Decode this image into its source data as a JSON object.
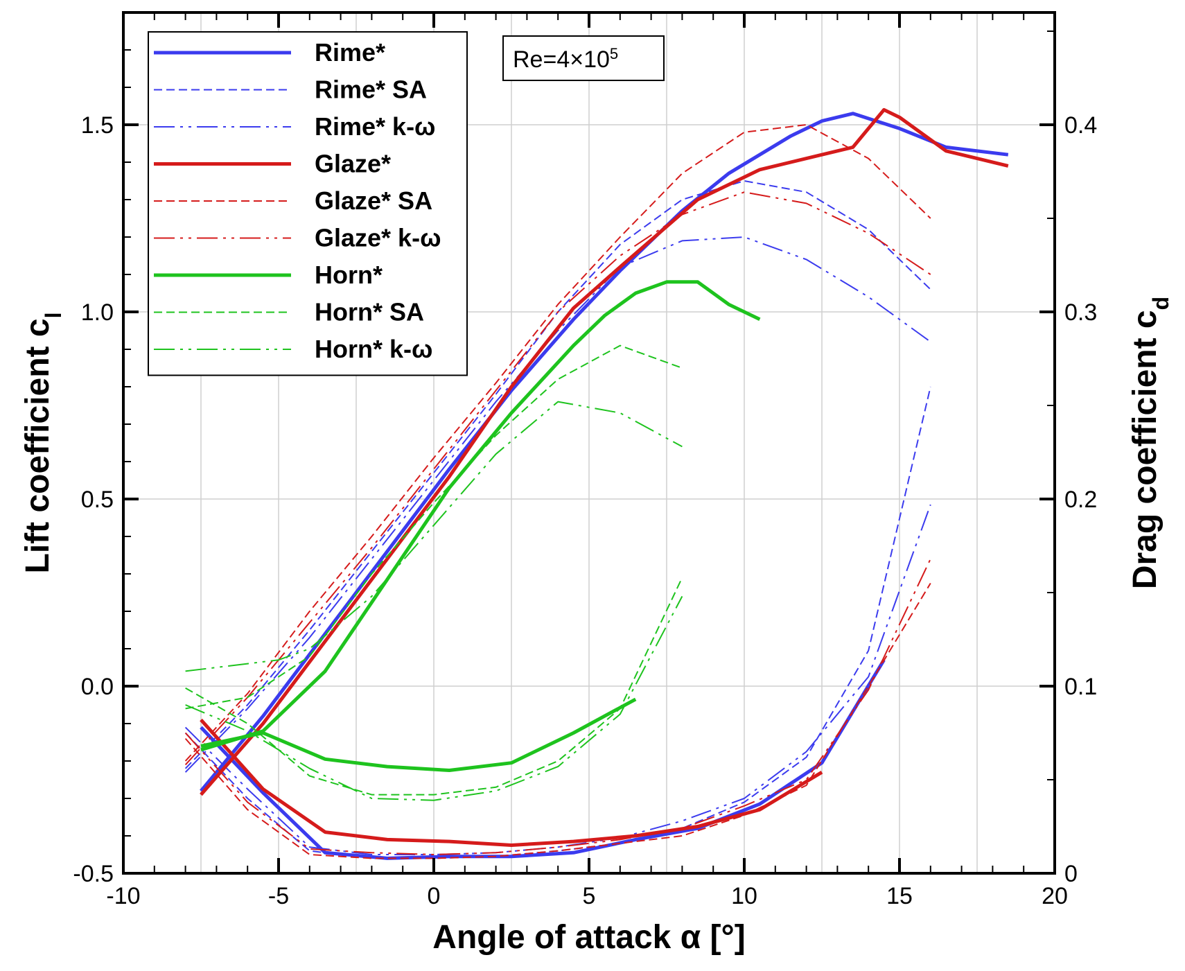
{
  "chart_data": {
    "type": "line",
    "annotation": "Re=4×10",
    "annotation_sup": "5",
    "xaxis": {
      "label": "Angle of attack α [°]",
      "range": [
        -10,
        20
      ],
      "ticks": [
        -10,
        -5,
        0,
        5,
        10,
        15,
        20
      ],
      "tick_labels": [
        "-10",
        "-5",
        "0",
        "5",
        "10",
        "15",
        "20"
      ]
    },
    "yaxis_left": {
      "label": "Lift coefficient c",
      "label_sub": "l",
      "range": [
        -0.5,
        1.8
      ],
      "ticks": [
        -0.5,
        0.0,
        0.5,
        1.0,
        1.5
      ],
      "tick_labels": [
        "-0.5",
        "0.0",
        "0.5",
        "1.0",
        "1.5"
      ]
    },
    "yaxis_right": {
      "label": "Drag coefficient c",
      "label_sub": "d",
      "range": [
        0,
        0.46
      ],
      "ticks": [
        0,
        0.1,
        0.2,
        0.3,
        0.4
      ],
      "tick_labels": [
        "0",
        "0.1",
        "0.2",
        "0.3",
        "0.4"
      ]
    },
    "grid": true,
    "legend_position": "top-left",
    "series": [
      {
        "name": "Rime*",
        "color": "#3b3bee",
        "dash": "solid",
        "thick": true,
        "cl": [
          [
            -7.5,
            -0.28
          ],
          [
            -5.5,
            -0.08
          ],
          [
            -3.5,
            0.14
          ],
          [
            0.5,
            0.58
          ],
          [
            2.5,
            0.79
          ],
          [
            4.5,
            0.98
          ],
          [
            6,
            1.11
          ],
          [
            8,
            1.27
          ],
          [
            9.5,
            1.37
          ],
          [
            10.5,
            1.42
          ],
          [
            11.5,
            1.47
          ],
          [
            12.5,
            1.51
          ],
          [
            13.5,
            1.53
          ],
          [
            15,
            1.49
          ],
          [
            16.5,
            1.44
          ],
          [
            18.5,
            1.42
          ]
        ],
        "cd": [
          [
            -7.5,
            0.078
          ],
          [
            -5.5,
            0.043
          ],
          [
            -3.5,
            0.011
          ],
          [
            -1.5,
            0.008
          ],
          [
            0.5,
            0.009
          ],
          [
            2.5,
            0.009
          ],
          [
            4.5,
            0.011
          ],
          [
            6.5,
            0.018
          ],
          [
            8.5,
            0.024
          ],
          [
            10.5,
            0.037
          ],
          [
            12.5,
            0.059
          ],
          [
            14.5,
            0.114
          ]
        ]
      },
      {
        "name": "Rime* SA",
        "color": "#3b3bee",
        "dash": "dashed",
        "thick": false,
        "cl": [
          [
            -8,
            -0.22
          ],
          [
            -6,
            -0.05
          ],
          [
            -4,
            0.15
          ],
          [
            -2,
            0.36
          ],
          [
            0,
            0.57
          ],
          [
            2,
            0.78
          ],
          [
            4,
            1.0
          ],
          [
            6,
            1.18
          ],
          [
            8,
            1.3
          ],
          [
            10,
            1.35
          ],
          [
            12,
            1.32
          ],
          [
            14,
            1.22
          ],
          [
            16,
            1.06
          ]
        ],
        "cd": [
          [
            -8,
            0.075
          ],
          [
            -6,
            0.04
          ],
          [
            -4,
            0.012
          ],
          [
            -2,
            0.008
          ],
          [
            0,
            0.008
          ],
          [
            2,
            0.009
          ],
          [
            4,
            0.012
          ],
          [
            6,
            0.016
          ],
          [
            8,
            0.024
          ],
          [
            10,
            0.038
          ],
          [
            12,
            0.062
          ],
          [
            14,
            0.119
          ],
          [
            16,
            0.26
          ]
        ]
      },
      {
        "name": "Rime* k-ω",
        "color": "#3b3bee",
        "dash": "dashdotdot",
        "thick": false,
        "cl": [
          [
            -8,
            -0.23
          ],
          [
            -6,
            -0.06
          ],
          [
            -4,
            0.13
          ],
          [
            -2,
            0.34
          ],
          [
            0,
            0.55
          ],
          [
            2,
            0.76
          ],
          [
            4,
            0.95
          ],
          [
            6,
            1.12
          ],
          [
            8,
            1.19
          ],
          [
            10,
            1.2
          ],
          [
            12,
            1.14
          ],
          [
            14,
            1.04
          ],
          [
            16,
            0.92
          ]
        ],
        "cd": [
          [
            -8,
            0.078
          ],
          [
            -6,
            0.045
          ],
          [
            -4,
            0.014
          ],
          [
            -2,
            0.01
          ],
          [
            0,
            0.01
          ],
          [
            2,
            0.011
          ],
          [
            4,
            0.014
          ],
          [
            6,
            0.019
          ],
          [
            8,
            0.028
          ],
          [
            10,
            0.04
          ],
          [
            12,
            0.065
          ],
          [
            14,
            0.105
          ],
          [
            16,
            0.197
          ]
        ]
      },
      {
        "name": "Glaze*",
        "color": "#d51b1b",
        "dash": "solid",
        "thick": true,
        "cl": [
          [
            -7.5,
            -0.29
          ],
          [
            -5.5,
            -0.1
          ],
          [
            -3.5,
            0.12
          ],
          [
            0.5,
            0.56
          ],
          [
            2.5,
            0.8
          ],
          [
            4.5,
            1.01
          ],
          [
            6,
            1.12
          ],
          [
            8.5,
            1.3
          ],
          [
            10.5,
            1.38
          ],
          [
            12.5,
            1.42
          ],
          [
            13.5,
            1.44
          ],
          [
            14,
            1.49
          ],
          [
            14.5,
            1.54
          ],
          [
            15,
            1.52
          ],
          [
            16.5,
            1.43
          ],
          [
            18.5,
            1.39
          ]
        ],
        "cd": [
          [
            -7.5,
            0.082
          ],
          [
            -5.5,
            0.045
          ],
          [
            -3.5,
            0.022
          ],
          [
            -1.5,
            0.018
          ],
          [
            0.5,
            0.017
          ],
          [
            2.5,
            0.015
          ],
          [
            4.5,
            0.017
          ],
          [
            6.5,
            0.02
          ],
          [
            8.5,
            0.025
          ],
          [
            10.5,
            0.034
          ],
          [
            12.5,
            0.054
          ]
        ]
      },
      {
        "name": "Glaze* SA",
        "color": "#d51b1b",
        "dash": "dashed",
        "thick": false,
        "cl": [
          [
            -8,
            -0.2
          ],
          [
            -6,
            -0.02
          ],
          [
            -4,
            0.2
          ],
          [
            -2,
            0.4
          ],
          [
            0,
            0.61
          ],
          [
            2,
            0.81
          ],
          [
            4,
            1.02
          ],
          [
            6,
            1.2
          ],
          [
            8,
            1.37
          ],
          [
            10,
            1.48
          ],
          [
            12,
            1.5
          ],
          [
            14,
            1.41
          ],
          [
            16,
            1.25
          ]
        ],
        "cd": [
          [
            -8,
            0.072
          ],
          [
            -6,
            0.034
          ],
          [
            -4,
            0.01
          ],
          [
            -2,
            0.008
          ],
          [
            0,
            0.008
          ],
          [
            2,
            0.009
          ],
          [
            4,
            0.012
          ],
          [
            6,
            0.016
          ],
          [
            8,
            0.02
          ],
          [
            10,
            0.031
          ],
          [
            12,
            0.047
          ],
          [
            14,
            0.1
          ],
          [
            16,
            0.155
          ]
        ]
      },
      {
        "name": "Glaze* k-ω",
        "color": "#d51b1b",
        "dash": "dashdotdot",
        "thick": false,
        "cl": [
          [
            -8,
            -0.21
          ],
          [
            -6,
            -0.03
          ],
          [
            -4,
            0.17
          ],
          [
            -2,
            0.37
          ],
          [
            0,
            0.58
          ],
          [
            2,
            0.79
          ],
          [
            4,
            1.0
          ],
          [
            6,
            1.15
          ],
          [
            8,
            1.26
          ],
          [
            10,
            1.32
          ],
          [
            12,
            1.29
          ],
          [
            14,
            1.21
          ],
          [
            16,
            1.1
          ]
        ],
        "cd": [
          [
            -8,
            0.075
          ],
          [
            -6,
            0.038
          ],
          [
            -4,
            0.013
          ],
          [
            -2,
            0.011
          ],
          [
            0,
            0.01
          ],
          [
            2,
            0.011
          ],
          [
            4,
            0.014
          ],
          [
            6,
            0.018
          ],
          [
            8,
            0.024
          ],
          [
            10,
            0.036
          ],
          [
            12,
            0.05
          ],
          [
            14,
            0.098
          ],
          [
            16,
            0.168
          ]
        ]
      },
      {
        "name": "Horn*",
        "color": "#1ec31e",
        "dash": "solid",
        "thick": true,
        "cl": [
          [
            -7.5,
            -0.17
          ],
          [
            -5.5,
            -0.12
          ],
          [
            -3.5,
            0.04
          ],
          [
            0.5,
            0.53
          ],
          [
            2.5,
            0.73
          ],
          [
            4.5,
            0.91
          ],
          [
            5.5,
            0.99
          ],
          [
            6.5,
            1.05
          ],
          [
            7.5,
            1.08
          ],
          [
            8.5,
            1.08
          ],
          [
            9.5,
            1.02
          ],
          [
            10.5,
            0.98
          ]
        ],
        "cd": [
          [
            -7.5,
            0.068
          ],
          [
            -5.5,
            0.075
          ],
          [
            -3.5,
            0.061
          ],
          [
            -1.5,
            0.057
          ],
          [
            0.5,
            0.055
          ],
          [
            2.5,
            0.059
          ],
          [
            4.5,
            0.075
          ],
          [
            6.5,
            0.093
          ]
        ]
      },
      {
        "name": "Horn* SA",
        "color": "#1ec31e",
        "dash": "dashed",
        "thick": false,
        "cl": [
          [
            -8,
            -0.06
          ],
          [
            -6,
            -0.03
          ],
          [
            -4,
            0.08
          ],
          [
            -2,
            0.3
          ],
          [
            0,
            0.49
          ],
          [
            2,
            0.67
          ],
          [
            4,
            0.82
          ],
          [
            6,
            0.91
          ],
          [
            8,
            0.85
          ]
        ],
        "cd": [
          [
            -8,
            0.099
          ],
          [
            -6,
            0.08
          ],
          [
            -4,
            0.052
          ],
          [
            -2,
            0.042
          ],
          [
            0,
            0.042
          ],
          [
            2,
            0.046
          ],
          [
            4,
            0.06
          ],
          [
            6,
            0.088
          ],
          [
            8,
            0.158
          ]
        ]
      },
      {
        "name": "Horn* k-ω",
        "color": "#1ec31e",
        "dash": "dashdotdot",
        "thick": false,
        "cl": [
          [
            -8,
            0.04
          ],
          [
            -6,
            0.06
          ],
          [
            -5,
            0.07
          ],
          [
            -4,
            0.1
          ],
          [
            -2,
            0.24
          ],
          [
            0,
            0.43
          ],
          [
            2,
            0.62
          ],
          [
            4,
            0.76
          ],
          [
            6,
            0.73
          ],
          [
            8,
            0.64
          ]
        ],
        "cd": [
          [
            -8,
            0.09
          ],
          [
            -6,
            0.076
          ],
          [
            -4,
            0.056
          ],
          [
            -2,
            0.04
          ],
          [
            0,
            0.039
          ],
          [
            2,
            0.044
          ],
          [
            4,
            0.057
          ],
          [
            6,
            0.085
          ],
          [
            8,
            0.148
          ]
        ]
      }
    ]
  }
}
